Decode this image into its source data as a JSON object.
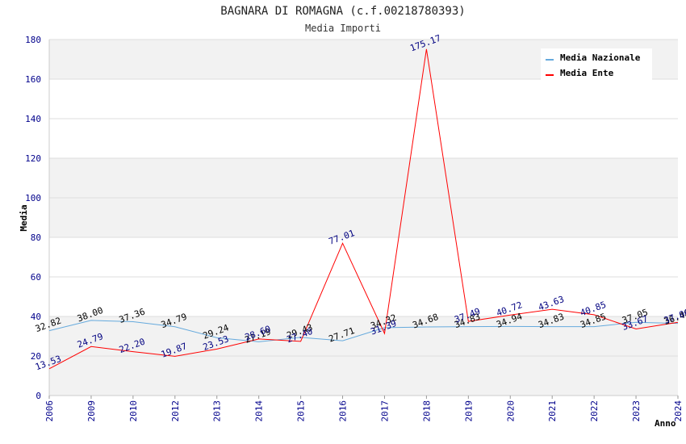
{
  "chart_data": {
    "type": "line",
    "title": "BAGNARA DI ROMAGNA (c.f.00218780393)",
    "subtitle": "Media Importi",
    "ylabel": "Media",
    "xlabel": "Anno",
    "ylim": [
      0,
      180
    ],
    "yticks": [
      "0",
      "20",
      "40",
      "60",
      "80",
      "100",
      "120",
      "140",
      "160",
      "180"
    ],
    "categories": [
      "2006",
      "2009",
      "2010",
      "2012",
      "2013",
      "2014",
      "2015",
      "2016",
      "2017",
      "2018",
      "2019",
      "2020",
      "2021",
      "2022",
      "2023",
      "2024"
    ],
    "series": [
      {
        "name": "Media Nazionale",
        "color": "#66aadd",
        "label_color": "#000000",
        "values": [
          32.82,
          38.0,
          37.36,
          34.79,
          29.24,
          27.19,
          29.43,
          27.71,
          34.32,
          34.68,
          34.83,
          34.94,
          34.83,
          34.85,
          37.05,
          36.48
        ],
        "labels": [
          "32.82",
          "38.00",
          "37.36",
          "34.79",
          "29.24",
          "27.19",
          "29.43",
          "27.71",
          "34.32",
          "34.68",
          "34.83",
          "34.94",
          "34.83",
          "34.85",
          "37.05",
          "36.48"
        ]
      },
      {
        "name": "Media Ente",
        "color": "#ff0000",
        "label_color": "#000080",
        "values": [
          13.53,
          24.79,
          22.2,
          19.87,
          23.53,
          28.6,
          27.4,
          77.01,
          31.39,
          175.17,
          37.49,
          40.72,
          43.63,
          40.85,
          33.67,
          37.06
        ],
        "labels": [
          "13.53",
          "24.79",
          "22.20",
          "19.87",
          "23.53",
          "28.60",
          "27.40",
          "77.01",
          "31.39",
          "175.17",
          "37.49",
          "40.72",
          "43.63",
          "40.85",
          "33.67",
          "37.06"
        ]
      }
    ],
    "grid": true,
    "legend_position": "top-right"
  }
}
